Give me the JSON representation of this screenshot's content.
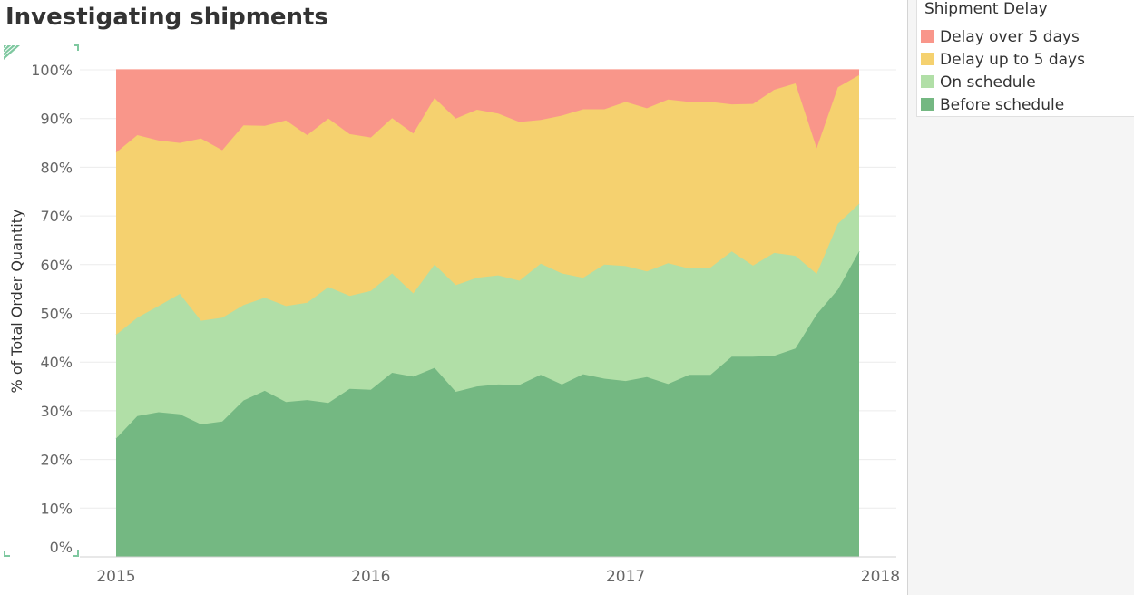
{
  "title": "Investigating shipments",
  "legend": {
    "title": "Shipment Delay",
    "items": [
      {
        "label": "Delay over 5 days",
        "color": "#f9968a"
      },
      {
        "label": "Delay up to 5 days",
        "color": "#f5d16f"
      },
      {
        "label": "On schedule",
        "color": "#b1dfa7"
      },
      {
        "label": "Before schedule",
        "color": "#74b882"
      }
    ]
  },
  "chart_data": {
    "type": "area",
    "stacked": true,
    "ylabel": "% of Total Order Quantity",
    "xlabel": "",
    "ylim": [
      0,
      100
    ],
    "yticks": [
      "0%",
      "10%",
      "20%",
      "30%",
      "40%",
      "50%",
      "60%",
      "70%",
      "80%",
      "90%",
      "100%"
    ],
    "xticks": [
      "2015",
      "2016",
      "2017",
      "2018"
    ],
    "x": [
      "2015-01",
      "2015-02",
      "2015-03",
      "2015-04",
      "2015-05",
      "2015-06",
      "2015-07",
      "2015-08",
      "2015-09",
      "2015-10",
      "2015-11",
      "2015-12",
      "2016-01",
      "2016-02",
      "2016-03",
      "2016-04",
      "2016-05",
      "2016-06",
      "2016-07",
      "2016-08",
      "2016-09",
      "2016-10",
      "2016-11",
      "2016-12",
      "2017-01",
      "2017-02",
      "2017-03",
      "2017-04",
      "2017-05",
      "2017-06",
      "2017-07",
      "2017-08",
      "2017-09",
      "2017-10",
      "2017-11",
      "2017-12"
    ],
    "grid": true,
    "series": [
      {
        "name": "Before schedule",
        "color": "#74b882",
        "values": [
          24.3,
          28.9,
          29.7,
          29.3,
          27.2,
          27.8,
          32.1,
          34.1,
          31.8,
          32.2,
          31.6,
          34.5,
          34.3,
          37.8,
          37.0,
          38.8,
          33.9,
          35.0,
          35.4,
          35.3,
          37.4,
          35.4,
          37.5,
          36.6,
          36.1,
          36.9,
          35.5,
          37.4,
          37.4,
          41.1,
          41.1,
          41.3,
          42.8,
          49.8,
          54.9,
          62.7
        ]
      },
      {
        "name": "On schedule",
        "color": "#b1dfa7",
        "values": [
          21.3,
          20.2,
          21.8,
          24.7,
          21.3,
          21.3,
          19.6,
          19.1,
          19.7,
          20.0,
          23.8,
          19.1,
          20.3,
          20.4,
          17.1,
          21.2,
          21.9,
          22.3,
          22.4,
          21.4,
          22.8,
          22.8,
          19.8,
          23.4,
          23.6,
          21.7,
          24.8,
          21.8,
          22.0,
          21.6,
          18.7,
          21.1,
          19.0,
          8.3,
          13.5,
          9.8
        ]
      },
      {
        "name": "Delay up to 5 days",
        "color": "#f5d16f",
        "values": [
          37.4,
          37.5,
          34.0,
          31.0,
          37.4,
          34.4,
          36.9,
          35.3,
          38.1,
          34.4,
          34.6,
          33.2,
          31.5,
          31.9,
          32.8,
          34.2,
          34.2,
          34.5,
          33.2,
          32.6,
          29.5,
          32.4,
          34.6,
          31.9,
          33.7,
          33.5,
          33.6,
          34.2,
          34.0,
          30.2,
          33.2,
          33.5,
          35.4,
          25.8,
          28.0,
          26.4
        ]
      },
      {
        "name": "Delay over 5 days",
        "color": "#f9968a",
        "values": [
          17.0,
          13.4,
          14.5,
          15.0,
          14.1,
          16.5,
          11.4,
          11.5,
          10.4,
          13.4,
          10.0,
          13.2,
          13.9,
          9.9,
          13.1,
          5.8,
          10.0,
          8.2,
          9.0,
          10.7,
          10.3,
          9.4,
          8.1,
          8.1,
          6.6,
          7.9,
          6.1,
          6.6,
          6.6,
          7.1,
          7.0,
          4.1,
          2.8,
          16.1,
          3.6,
          1.1
        ]
      }
    ]
  }
}
